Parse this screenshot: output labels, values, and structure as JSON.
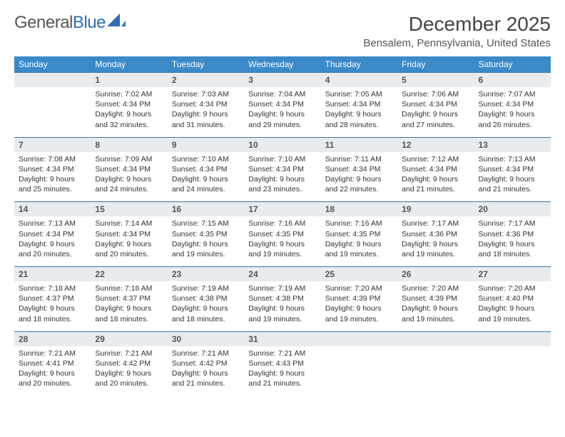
{
  "logo": {
    "text_a": "General",
    "text_b": "Blue"
  },
  "title": "December 2025",
  "location": "Bensalem, Pennsylvania, United States",
  "colors": {
    "header_bg": "#3a8ac9",
    "header_text": "#ffffff",
    "daynum_bg": "#e9ecef",
    "daynum_border": "#3a77a8",
    "logo_blue": "#2d6fb5"
  },
  "day_headers": [
    "Sunday",
    "Monday",
    "Tuesday",
    "Wednesday",
    "Thursday",
    "Friday",
    "Saturday"
  ],
  "weeks": [
    [
      null,
      {
        "n": "1",
        "sr": "Sunrise: 7:02 AM",
        "ss": "Sunset: 4:34 PM",
        "d1": "Daylight: 9 hours",
        "d2": "and 32 minutes."
      },
      {
        "n": "2",
        "sr": "Sunrise: 7:03 AM",
        "ss": "Sunset: 4:34 PM",
        "d1": "Daylight: 9 hours",
        "d2": "and 31 minutes."
      },
      {
        "n": "3",
        "sr": "Sunrise: 7:04 AM",
        "ss": "Sunset: 4:34 PM",
        "d1": "Daylight: 9 hours",
        "d2": "and 29 minutes."
      },
      {
        "n": "4",
        "sr": "Sunrise: 7:05 AM",
        "ss": "Sunset: 4:34 PM",
        "d1": "Daylight: 9 hours",
        "d2": "and 28 minutes."
      },
      {
        "n": "5",
        "sr": "Sunrise: 7:06 AM",
        "ss": "Sunset: 4:34 PM",
        "d1": "Daylight: 9 hours",
        "d2": "and 27 minutes."
      },
      {
        "n": "6",
        "sr": "Sunrise: 7:07 AM",
        "ss": "Sunset: 4:34 PM",
        "d1": "Daylight: 9 hours",
        "d2": "and 26 minutes."
      }
    ],
    [
      {
        "n": "7",
        "sr": "Sunrise: 7:08 AM",
        "ss": "Sunset: 4:34 PM",
        "d1": "Daylight: 9 hours",
        "d2": "and 25 minutes."
      },
      {
        "n": "8",
        "sr": "Sunrise: 7:09 AM",
        "ss": "Sunset: 4:34 PM",
        "d1": "Daylight: 9 hours",
        "d2": "and 24 minutes."
      },
      {
        "n": "9",
        "sr": "Sunrise: 7:10 AM",
        "ss": "Sunset: 4:34 PM",
        "d1": "Daylight: 9 hours",
        "d2": "and 24 minutes."
      },
      {
        "n": "10",
        "sr": "Sunrise: 7:10 AM",
        "ss": "Sunset: 4:34 PM",
        "d1": "Daylight: 9 hours",
        "d2": "and 23 minutes."
      },
      {
        "n": "11",
        "sr": "Sunrise: 7:11 AM",
        "ss": "Sunset: 4:34 PM",
        "d1": "Daylight: 9 hours",
        "d2": "and 22 minutes."
      },
      {
        "n": "12",
        "sr": "Sunrise: 7:12 AM",
        "ss": "Sunset: 4:34 PM",
        "d1": "Daylight: 9 hours",
        "d2": "and 21 minutes."
      },
      {
        "n": "13",
        "sr": "Sunrise: 7:13 AM",
        "ss": "Sunset: 4:34 PM",
        "d1": "Daylight: 9 hours",
        "d2": "and 21 minutes."
      }
    ],
    [
      {
        "n": "14",
        "sr": "Sunrise: 7:13 AM",
        "ss": "Sunset: 4:34 PM",
        "d1": "Daylight: 9 hours",
        "d2": "and 20 minutes."
      },
      {
        "n": "15",
        "sr": "Sunrise: 7:14 AM",
        "ss": "Sunset: 4:34 PM",
        "d1": "Daylight: 9 hours",
        "d2": "and 20 minutes."
      },
      {
        "n": "16",
        "sr": "Sunrise: 7:15 AM",
        "ss": "Sunset: 4:35 PM",
        "d1": "Daylight: 9 hours",
        "d2": "and 19 minutes."
      },
      {
        "n": "17",
        "sr": "Sunrise: 7:16 AM",
        "ss": "Sunset: 4:35 PM",
        "d1": "Daylight: 9 hours",
        "d2": "and 19 minutes."
      },
      {
        "n": "18",
        "sr": "Sunrise: 7:16 AM",
        "ss": "Sunset: 4:35 PM",
        "d1": "Daylight: 9 hours",
        "d2": "and 19 minutes."
      },
      {
        "n": "19",
        "sr": "Sunrise: 7:17 AM",
        "ss": "Sunset: 4:36 PM",
        "d1": "Daylight: 9 hours",
        "d2": "and 19 minutes."
      },
      {
        "n": "20",
        "sr": "Sunrise: 7:17 AM",
        "ss": "Sunset: 4:36 PM",
        "d1": "Daylight: 9 hours",
        "d2": "and 18 minutes."
      }
    ],
    [
      {
        "n": "21",
        "sr": "Sunrise: 7:18 AM",
        "ss": "Sunset: 4:37 PM",
        "d1": "Daylight: 9 hours",
        "d2": "and 18 minutes."
      },
      {
        "n": "22",
        "sr": "Sunrise: 7:18 AM",
        "ss": "Sunset: 4:37 PM",
        "d1": "Daylight: 9 hours",
        "d2": "and 18 minutes."
      },
      {
        "n": "23",
        "sr": "Sunrise: 7:19 AM",
        "ss": "Sunset: 4:38 PM",
        "d1": "Daylight: 9 hours",
        "d2": "and 18 minutes."
      },
      {
        "n": "24",
        "sr": "Sunrise: 7:19 AM",
        "ss": "Sunset: 4:38 PM",
        "d1": "Daylight: 9 hours",
        "d2": "and 19 minutes."
      },
      {
        "n": "25",
        "sr": "Sunrise: 7:20 AM",
        "ss": "Sunset: 4:39 PM",
        "d1": "Daylight: 9 hours",
        "d2": "and 19 minutes."
      },
      {
        "n": "26",
        "sr": "Sunrise: 7:20 AM",
        "ss": "Sunset: 4:39 PM",
        "d1": "Daylight: 9 hours",
        "d2": "and 19 minutes."
      },
      {
        "n": "27",
        "sr": "Sunrise: 7:20 AM",
        "ss": "Sunset: 4:40 PM",
        "d1": "Daylight: 9 hours",
        "d2": "and 19 minutes."
      }
    ],
    [
      {
        "n": "28",
        "sr": "Sunrise: 7:21 AM",
        "ss": "Sunset: 4:41 PM",
        "d1": "Daylight: 9 hours",
        "d2": "and 20 minutes."
      },
      {
        "n": "29",
        "sr": "Sunrise: 7:21 AM",
        "ss": "Sunset: 4:42 PM",
        "d1": "Daylight: 9 hours",
        "d2": "and 20 minutes."
      },
      {
        "n": "30",
        "sr": "Sunrise: 7:21 AM",
        "ss": "Sunset: 4:42 PM",
        "d1": "Daylight: 9 hours",
        "d2": "and 21 minutes."
      },
      {
        "n": "31",
        "sr": "Sunrise: 7:21 AM",
        "ss": "Sunset: 4:43 PM",
        "d1": "Daylight: 9 hours",
        "d2": "and 21 minutes."
      },
      null,
      null,
      null
    ]
  ]
}
